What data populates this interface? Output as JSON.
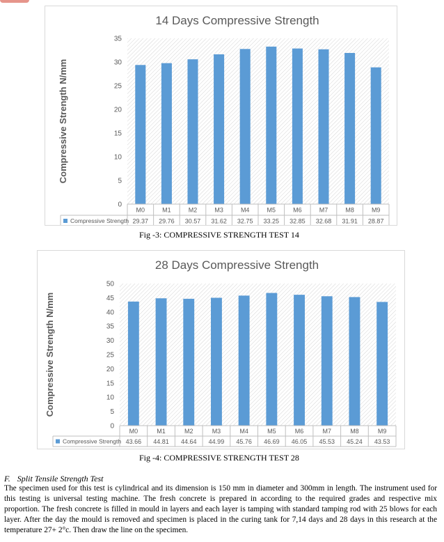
{
  "charts": [
    {
      "chart_data": {
        "type": "bar",
        "title": "14 Days Compressive Strength",
        "ylabel": "Compressive Strength N/mm",
        "xlabel": "",
        "categories": [
          "M0",
          "M1",
          "M2",
          "M3",
          "M4",
          "M5",
          "M6",
          "M7",
          "M8",
          "M9"
        ],
        "series": [
          {
            "name": "Compressive Strength",
            "values": [
              29.37,
              29.76,
              30.57,
              31.62,
              32.75,
              33.25,
              32.85,
              32.68,
              31.91,
              28.87
            ]
          }
        ],
        "ylim": [
          0,
          35
        ],
        "yticks": [
          0,
          5,
          10,
          15,
          20,
          25,
          30,
          35
        ],
        "data_table": true,
        "bar_color": "#5b9bd5",
        "grid": "hatched"
      },
      "value_labels": [
        "29.37",
        "29.76",
        "30.57",
        "31.62",
        "32.75",
        "33.25",
        "32.85",
        "32.68",
        "31.91",
        "28.87"
      ],
      "caption": "Fig -3:   COMPRESSIVE STRENGTH TEST 14"
    },
    {
      "chart_data": {
        "type": "bar",
        "title": "28 Days Compressive Strength",
        "ylabel": "Compressive Strength N/mm",
        "xlabel": "",
        "categories": [
          "M0",
          "M1",
          "M2",
          "M3",
          "M4",
          "M5",
          "M6",
          "M7",
          "M8",
          "M9"
        ],
        "series": [
          {
            "name": "Compressive Strength",
            "values": [
              43.66,
              44.81,
              44.64,
              44.99,
              45.76,
              46.69,
              46.05,
              45.53,
              45.24,
              43.53
            ]
          }
        ],
        "ylim": [
          0,
          50
        ],
        "yticks": [
          0,
          5,
          10,
          15,
          20,
          25,
          30,
          35,
          40,
          45,
          50
        ],
        "data_table": true,
        "bar_color": "#5b9bd5",
        "grid": "hatched"
      },
      "value_labels": [
        "43.66",
        "44.81",
        "44.64",
        "44.99",
        "45.76",
        "46.69",
        "46.05",
        "45.53",
        "45.24",
        "43.53"
      ],
      "caption": "Fig -4:   COMPRESSIVE STRENGTH TEST 28"
    }
  ],
  "section": {
    "number": "F.",
    "title": "Split Tensile Strength Test",
    "body": "The specimen used for this test is cylindrical and its dimension is 150 mm in diameter and 300mm in length. The instrument used for this testing is universal testing machine. The fresh concrete is prepared in according to the required grades and respective mix proportion. The fresh concrete is filled in mould in layers and each layer is tamping with standard tamping rod with 25 blows for each layer. After the day the mould is removed and specimen is placed in the curing tank for 7,14 days and 28 days in this research at the temperature 27+ 2°c. Then draw the line on the specimen."
  }
}
